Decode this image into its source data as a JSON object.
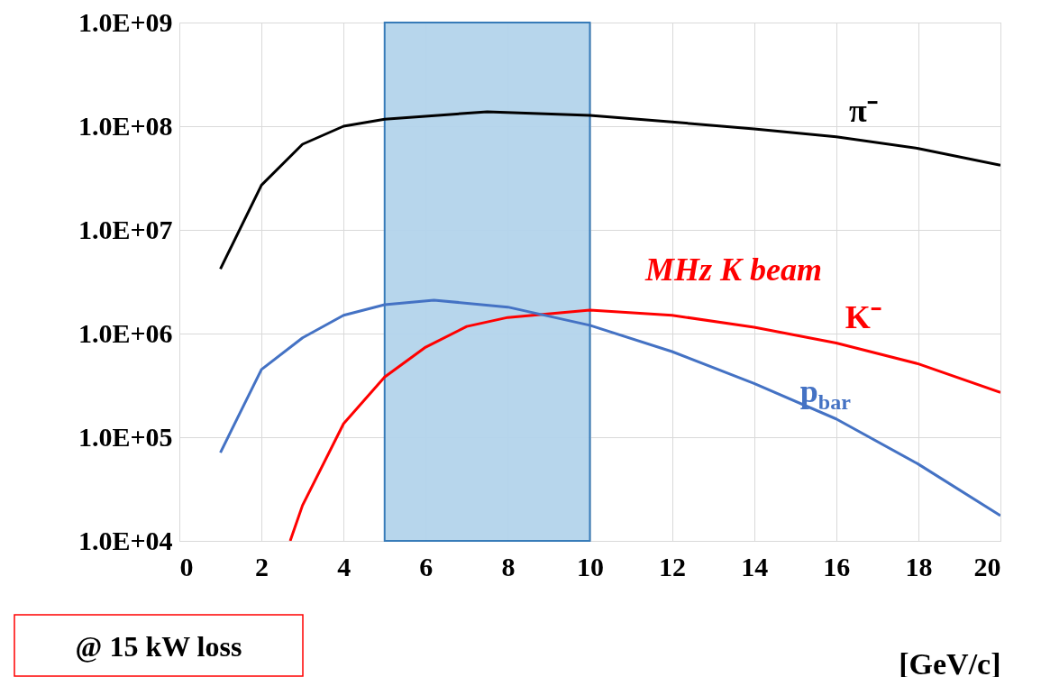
{
  "chart_data": {
    "type": "line",
    "xlabel": "[GeV/c]",
    "log": true,
    "grid": true,
    "legend": false,
    "xlim": [
      0,
      20
    ],
    "xticks": [
      0,
      2,
      4,
      6,
      8,
      10,
      12,
      14,
      16,
      18,
      20
    ],
    "ylim": [
      10000,
      1000000000
    ],
    "yticks": [
      {
        "value": 10000,
        "label": "1.0E+04"
      },
      {
        "value": 100000,
        "label": "1.0E+05"
      },
      {
        "value": 1000000,
        "label": "1.0E+06"
      },
      {
        "value": 10000000,
        "label": "1.0E+07"
      },
      {
        "value": 100000000,
        "label": "1.0E+08"
      },
      {
        "value": 1000000000,
        "label": "1.0E+09"
      }
    ],
    "series": [
      {
        "name": "π⁻",
        "color": "#000000",
        "x": [
          1,
          2,
          3,
          4,
          5,
          7.5,
          10,
          12,
          14,
          16,
          18,
          20
        ],
        "values": [
          4200000,
          27000000,
          67000000,
          100000000,
          117000000,
          138000000,
          127000000,
          110000000,
          94000000,
          79000000,
          61000000,
          42000000
        ]
      },
      {
        "name": "K⁻",
        "color": "#ff0000",
        "x": [
          2.7,
          3,
          4,
          5,
          6,
          7,
          8,
          10,
          12,
          14,
          16,
          18,
          20
        ],
        "values": [
          10000,
          22000,
          135000,
          380000,
          740000,
          1170000,
          1430000,
          1680000,
          1500000,
          1150000,
          810000,
          510000,
          270000
        ]
      },
      {
        "name": "p$_{bar}$",
        "color": "#4472c4",
        "x": [
          1,
          2,
          3,
          4,
          5,
          6.2,
          8,
          10,
          12,
          14,
          16,
          18,
          20
        ],
        "values": [
          71000,
          450000,
          910000,
          1500000,
          1900000,
          2100000,
          1800000,
          1200000,
          670000,
          330000,
          150000,
          55000,
          17500
        ]
      }
    ],
    "bands": [
      {
        "axis": "x",
        "from": 5,
        "to": 10,
        "color": "#b4d4ec"
      }
    ],
    "annotations": [
      "MHz K beam",
      "@ 15 kW loss"
    ]
  }
}
